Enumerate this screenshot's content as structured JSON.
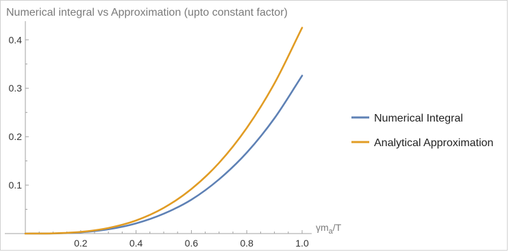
{
  "colors": {
    "numerical": "#5e81b5",
    "analytical": "#e19c24",
    "axis": "#a0a0a0"
  },
  "chart_data": {
    "type": "line",
    "title": "Numerical integral vs Approximation (upto constant factor)",
    "xlabel": "γm_a/T",
    "xlabel_parts": {
      "base": "γm",
      "sub": "a",
      "tail": "/T"
    },
    "ylabel": "",
    "xlim": [
      0,
      1.0
    ],
    "ylim": [
      0,
      0.43
    ],
    "xticks": [
      0.2,
      0.4,
      0.6,
      0.8,
      1.0
    ],
    "xtick_labels": [
      "0.2",
      "0.4",
      "0.6",
      "0.8",
      "1.0"
    ],
    "yticks": [
      0.1,
      0.2,
      0.3,
      0.4
    ],
    "ytick_labels": [
      "0.1",
      "0.2",
      "0.3",
      "0.4"
    ],
    "grid": false,
    "legend_placement": "right",
    "x": [
      0.0,
      0.1,
      0.2,
      0.3,
      0.4,
      0.5,
      0.6,
      0.7,
      0.8,
      0.9,
      1.0
    ],
    "series": [
      {
        "name": "Numerical Integral",
        "values": [
          0.0,
          0.0003,
          0.0026,
          0.0088,
          0.021,
          0.041,
          0.07,
          0.112,
          0.167,
          0.238,
          0.326
        ]
      },
      {
        "name": "Analytical Approximation",
        "values": [
          0.0,
          0.0004,
          0.0034,
          0.0115,
          0.027,
          0.053,
          0.092,
          0.146,
          0.218,
          0.31,
          0.425
        ]
      }
    ]
  }
}
